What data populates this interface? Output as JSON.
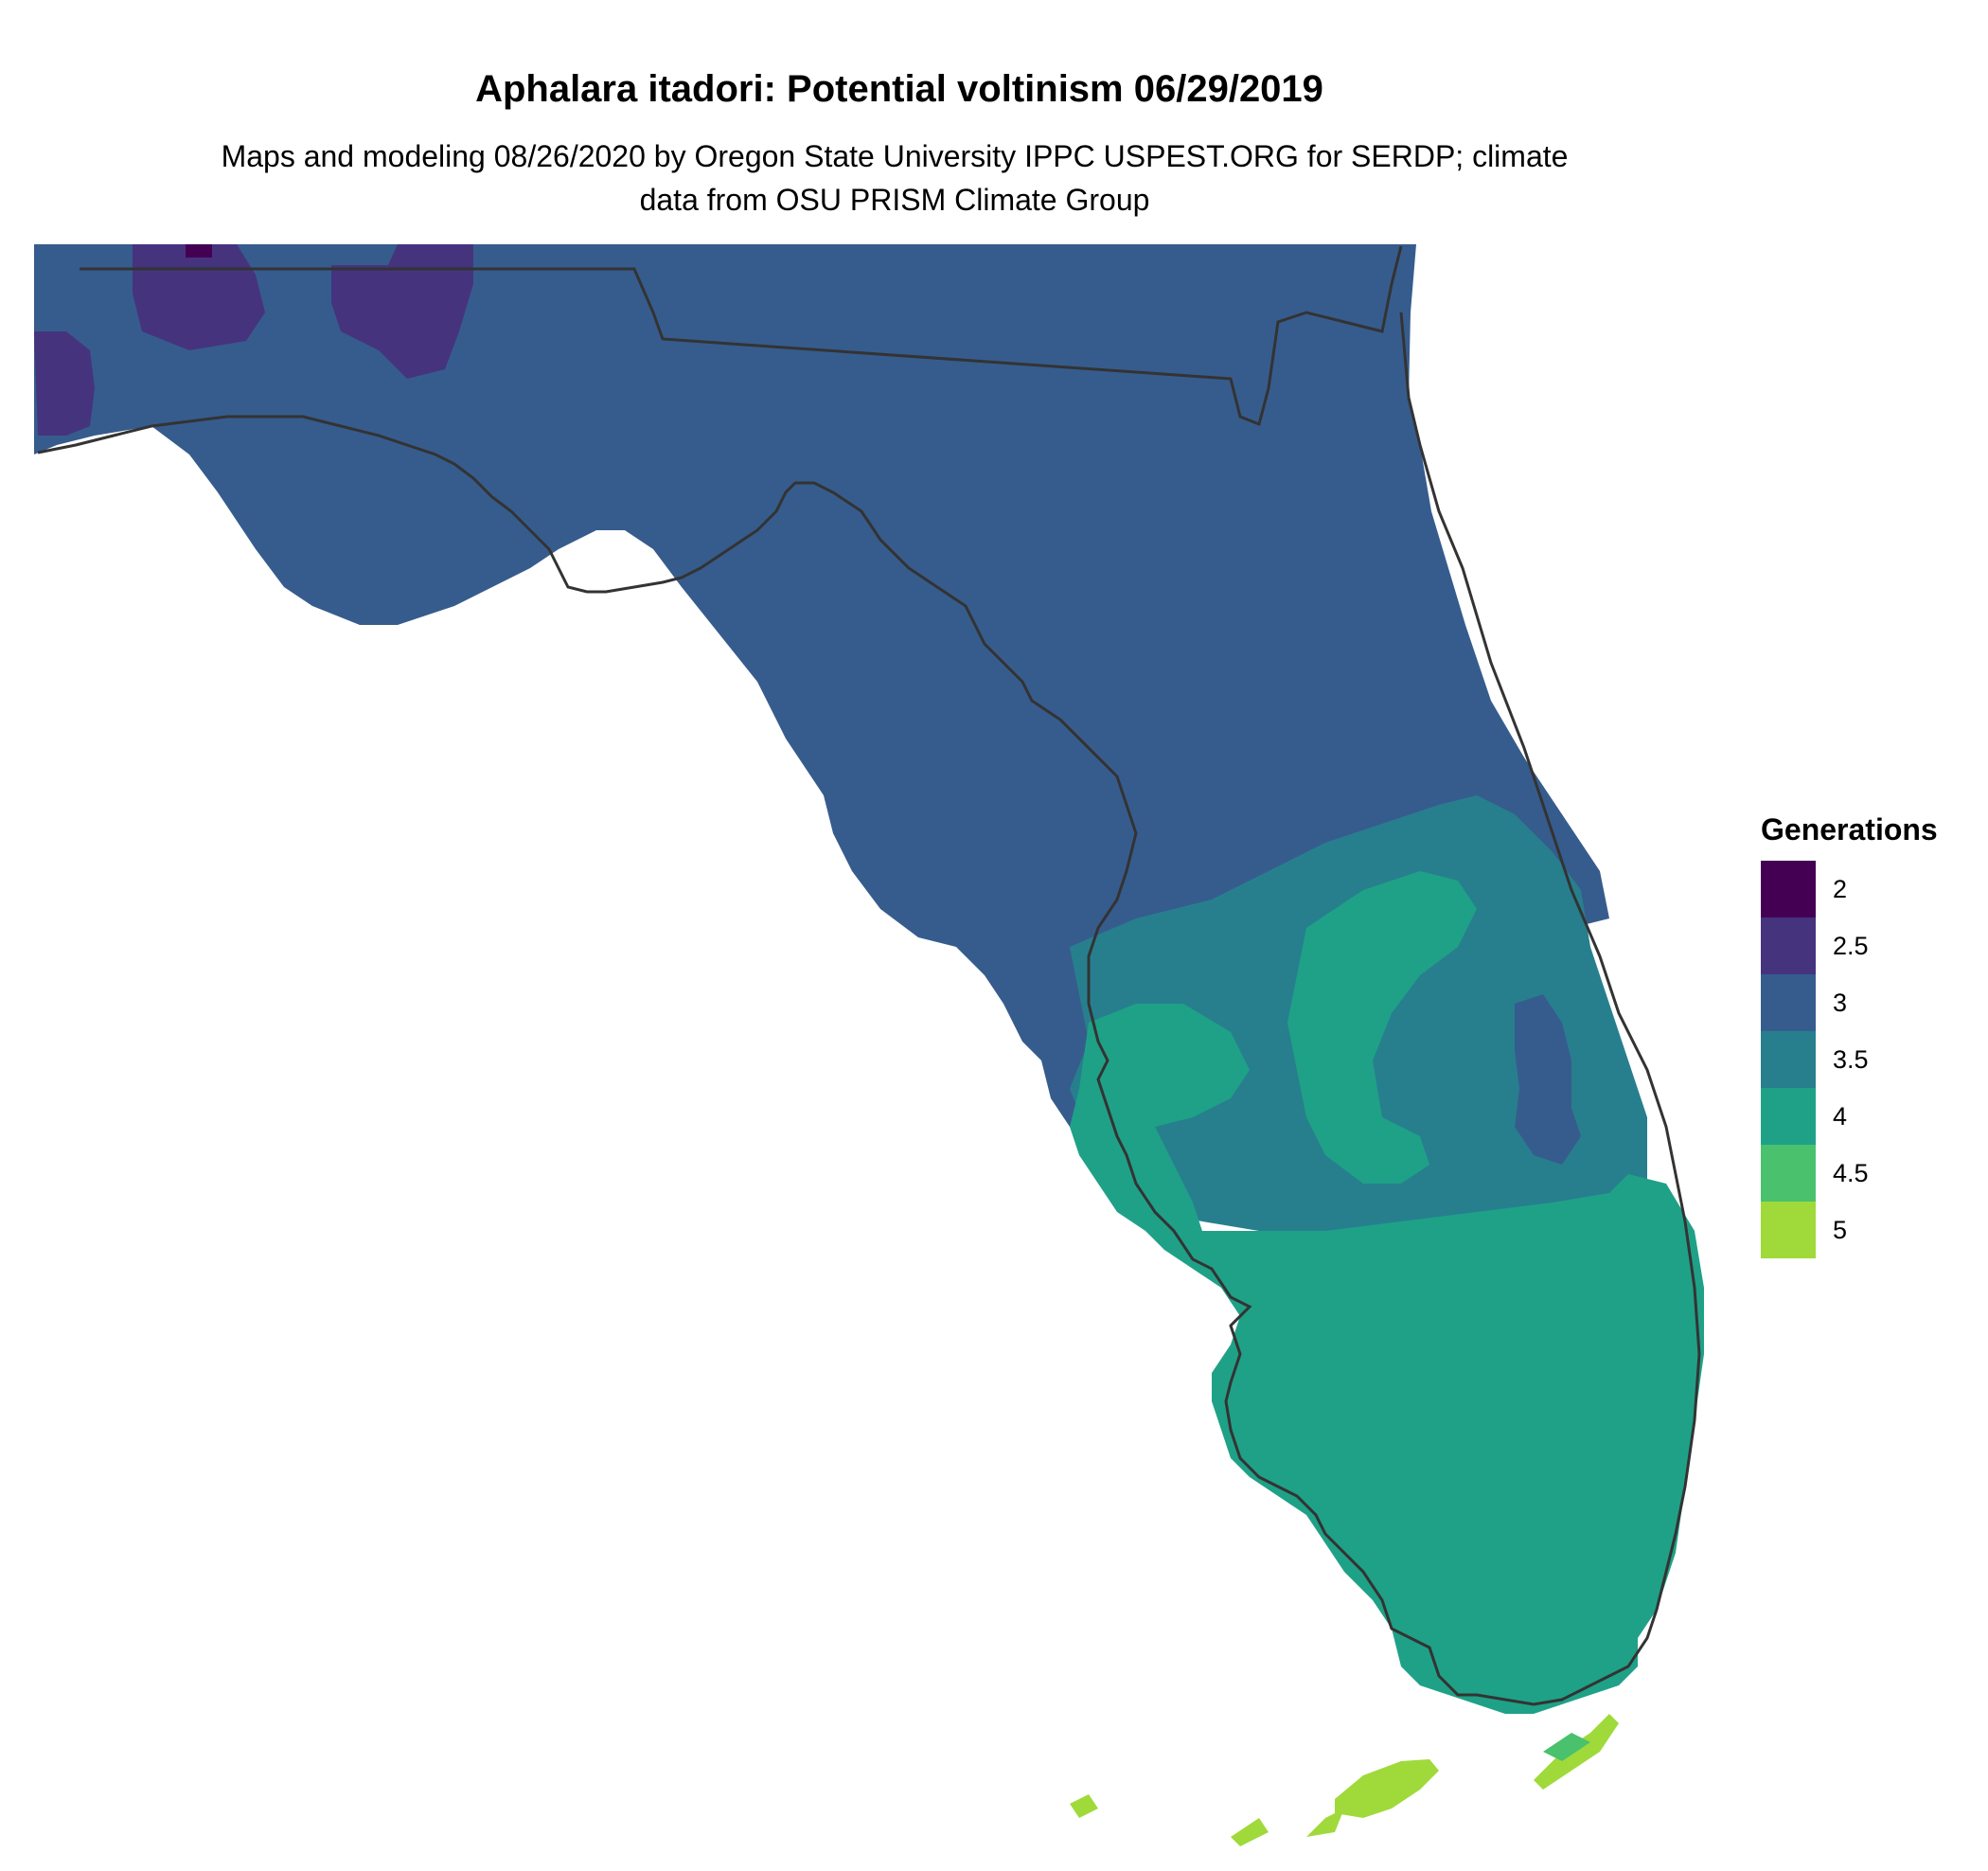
{
  "title": "Aphalara itadori: Potential voltinism 06/29/2019",
  "subtitle": "Maps and modeling 08/26/2020 by Oregon State University IPPC USPEST.ORG for SERDP; climate data from OSU PRISM Climate Group",
  "legend": {
    "title": "Generations",
    "items": [
      {
        "label": "2",
        "color": "#440154"
      },
      {
        "label": "2.5",
        "color": "#46337E"
      },
      {
        "label": "3",
        "color": "#365C8D"
      },
      {
        "label": "3.5",
        "color": "#277F8E"
      },
      {
        "label": "4",
        "color": "#1FA187"
      },
      {
        "label": "4.5",
        "color": "#4AC16D"
      },
      {
        "label": "5",
        "color": "#9FDA3A"
      }
    ]
  },
  "map": {
    "region": "Florida",
    "boundary_color": "#333333"
  }
}
